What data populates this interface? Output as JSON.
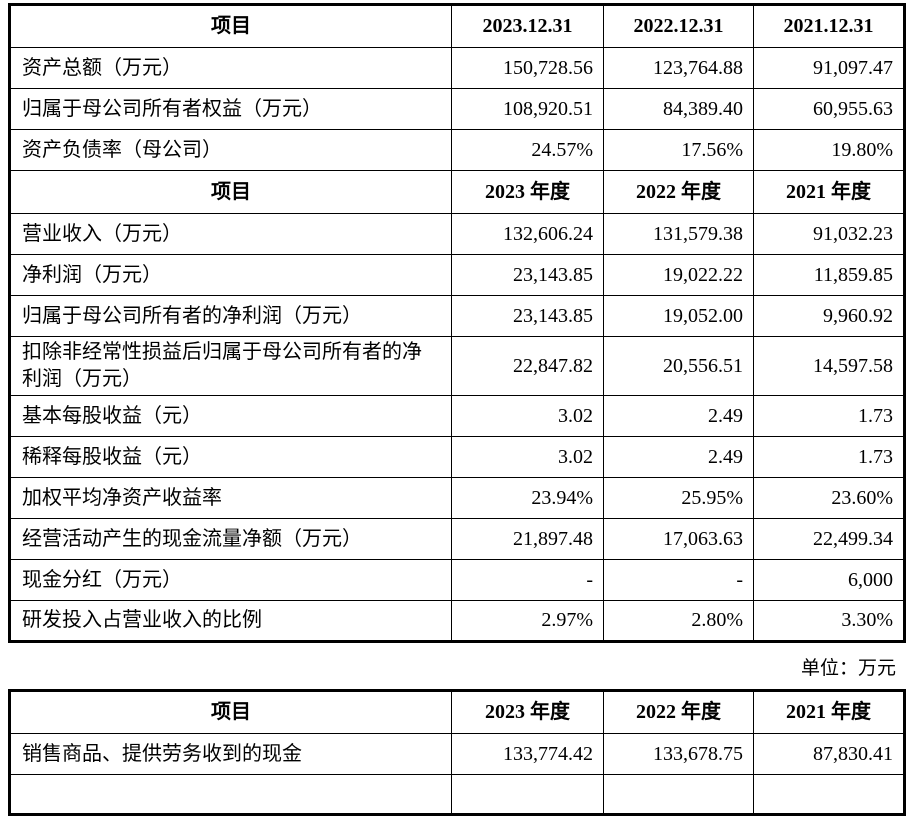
{
  "page": {
    "background_color": "#ffffff",
    "text_color": "#000000",
    "border_color": "#000000"
  },
  "unit_note": "单位：万元",
  "table1": {
    "sections": [
      {
        "header": {
          "item": "项目",
          "cols": [
            "2023.12.31",
            "2022.12.31",
            "2021.12.31"
          ]
        },
        "rows": [
          {
            "label": "资产总额（万元）",
            "values": [
              "150,728.56",
              "123,764.88",
              "91,097.47"
            ]
          },
          {
            "label": "归属于母公司所有者权益（万元）",
            "values": [
              "108,920.51",
              "84,389.40",
              "60,955.63"
            ]
          },
          {
            "label": "资产负债率（母公司）",
            "values": [
              "24.57%",
              "17.56%",
              "19.80%"
            ]
          }
        ]
      },
      {
        "header": {
          "item": "项目",
          "cols": [
            "2023 年度",
            "2022 年度",
            "2021 年度"
          ]
        },
        "rows": [
          {
            "label": "营业收入（万元）",
            "values": [
              "132,606.24",
              "131,579.38",
              "91,032.23"
            ]
          },
          {
            "label": "净利润（万元）",
            "values": [
              "23,143.85",
              "19,022.22",
              "11,859.85"
            ]
          },
          {
            "label": "归属于母公司所有者的净利润（万元）",
            "values": [
              "23,143.85",
              "19,052.00",
              "9,960.92"
            ]
          },
          {
            "label": "扣除非经常性损益后归属于母公司所有者的净利润（万元）",
            "values": [
              "22,847.82",
              "20,556.51",
              "14,597.58"
            ]
          },
          {
            "label": "基本每股收益（元）",
            "values": [
              "3.02",
              "2.49",
              "1.73"
            ]
          },
          {
            "label": "稀释每股收益（元）",
            "values": [
              "3.02",
              "2.49",
              "1.73"
            ]
          },
          {
            "label": "加权平均净资产收益率",
            "values": [
              "23.94%",
              "25.95%",
              "23.60%"
            ]
          },
          {
            "label": "经营活动产生的现金流量净额（万元）",
            "values": [
              "21,897.48",
              "17,063.63",
              "22,499.34"
            ]
          },
          {
            "label": "现金分红（万元）",
            "values": [
              "-",
              "-",
              "6,000"
            ]
          },
          {
            "label": "研发投入占营业收入的比例",
            "values": [
              "2.97%",
              "2.80%",
              "3.30%"
            ]
          }
        ]
      }
    ]
  },
  "table2": {
    "header": {
      "item": "项目",
      "cols": [
        "2023 年度",
        "2022 年度",
        "2021 年度"
      ]
    },
    "rows": [
      {
        "label": "销售商品、提供劳务收到的现金",
        "values": [
          "133,774.42",
          "133,678.75",
          "87,830.41"
        ]
      }
    ]
  }
}
